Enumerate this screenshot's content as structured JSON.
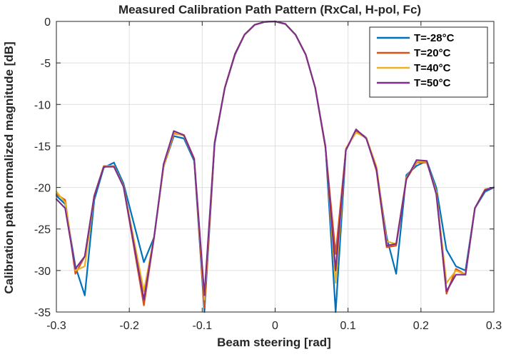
{
  "chart_data": {
    "type": "line",
    "title": "Measured Calibration Path Pattern (RxCal, H-pol, Fc)",
    "xlabel": "Beam steering [rad]",
    "ylabel": "Calibration path normalized magnitude [dB]",
    "xlim": [
      -0.3,
      0.3
    ],
    "ylim": [
      -35,
      0
    ],
    "xticks": [
      -0.3,
      -0.2,
      -0.1,
      0,
      0.1,
      0.2,
      0.3
    ],
    "xtick_labels": [
      "-0.3",
      "-0.2",
      "-0.1",
      "0",
      "0.1",
      "0.2",
      "0.3"
    ],
    "yticks": [
      -35,
      -30,
      -25,
      -20,
      -15,
      -10,
      -5,
      0
    ],
    "ytick_labels": [
      "-35",
      "-30",
      "-25",
      "-20",
      "-15",
      "-10",
      "-5",
      "0"
    ],
    "grid": true,
    "legend_position": "top-right",
    "series": [
      {
        "name": "T=-28°C",
        "color": "#0072BD",
        "points": [
          [
            -0.3,
            -21.0
          ],
          [
            -0.288,
            -22.0
          ],
          [
            -0.274,
            -29.5
          ],
          [
            -0.261,
            -33.0
          ],
          [
            -0.248,
            -21.5
          ],
          [
            -0.235,
            -17.6
          ],
          [
            -0.221,
            -17.0
          ],
          [
            -0.208,
            -19.5
          ],
          [
            -0.18,
            -29.0
          ],
          [
            -0.166,
            -26.0
          ],
          [
            -0.153,
            -17.5
          ],
          [
            -0.139,
            -13.8
          ],
          [
            -0.125,
            -14.1
          ],
          [
            -0.111,
            -16.8
          ],
          [
            -0.097,
            -35.0
          ],
          [
            -0.083,
            -14.8
          ],
          [
            -0.069,
            -8.0
          ],
          [
            -0.055,
            -4.0
          ],
          [
            -0.042,
            -1.6
          ],
          [
            -0.028,
            -0.4
          ],
          [
            -0.014,
            -0.05
          ],
          [
            0.0,
            0.0
          ],
          [
            0.014,
            -0.3
          ],
          [
            0.028,
            -1.6
          ],
          [
            0.042,
            -4.0
          ],
          [
            0.055,
            -8.0
          ],
          [
            0.069,
            -15.0
          ],
          [
            0.083,
            -35.0
          ],
          [
            0.097,
            -15.5
          ],
          [
            0.111,
            -13.1
          ],
          [
            0.125,
            -14.0
          ],
          [
            0.139,
            -17.8
          ],
          [
            0.153,
            -26.0
          ],
          [
            0.166,
            -30.4
          ],
          [
            0.18,
            -18.5
          ],
          [
            0.194,
            -17.4
          ],
          [
            0.208,
            -16.8
          ],
          [
            0.221,
            -20.0
          ],
          [
            0.235,
            -27.5
          ],
          [
            0.248,
            -29.5
          ],
          [
            0.261,
            -30.0
          ],
          [
            0.274,
            -22.5
          ],
          [
            0.288,
            -20.5
          ],
          [
            0.3,
            -20.0
          ]
        ]
      },
      {
        "name": "T=20°C",
        "color": "#D95319",
        "points": [
          [
            -0.3,
            -20.8
          ],
          [
            -0.288,
            -21.5
          ],
          [
            -0.274,
            -30.4
          ],
          [
            -0.261,
            -28.3
          ],
          [
            -0.248,
            -21.0
          ],
          [
            -0.235,
            -17.4
          ],
          [
            -0.221,
            -17.5
          ],
          [
            -0.208,
            -19.8
          ],
          [
            -0.18,
            -34.2
          ],
          [
            -0.166,
            -26.0
          ],
          [
            -0.153,
            -17.5
          ],
          [
            -0.139,
            -13.5
          ],
          [
            -0.125,
            -13.7
          ],
          [
            -0.111,
            -16.5
          ],
          [
            -0.097,
            -34.5
          ],
          [
            -0.083,
            -14.6
          ],
          [
            -0.069,
            -8.0
          ],
          [
            -0.055,
            -3.9
          ],
          [
            -0.042,
            -1.6
          ],
          [
            -0.028,
            -0.4
          ],
          [
            -0.014,
            -0.05
          ],
          [
            0.0,
            0.0
          ],
          [
            0.014,
            -0.3
          ],
          [
            0.028,
            -1.6
          ],
          [
            0.042,
            -4.0
          ],
          [
            0.055,
            -8.0
          ],
          [
            0.069,
            -15.2
          ],
          [
            0.083,
            -28.0
          ],
          [
            0.097,
            -15.5
          ],
          [
            0.111,
            -13.2
          ],
          [
            0.125,
            -14.0
          ],
          [
            0.139,
            -18.0
          ],
          [
            0.153,
            -27.2
          ],
          [
            0.166,
            -27.0
          ],
          [
            0.18,
            -19.0
          ],
          [
            0.194,
            -17.0
          ],
          [
            0.208,
            -17.0
          ],
          [
            0.221,
            -20.5
          ],
          [
            0.235,
            -32.8
          ],
          [
            0.248,
            -29.8
          ],
          [
            0.261,
            -30.5
          ],
          [
            0.274,
            -22.5
          ],
          [
            0.288,
            -20.2
          ],
          [
            0.3,
            -20.0
          ]
        ]
      },
      {
        "name": "T=40°C",
        "color": "#EDB120",
        "points": [
          [
            -0.3,
            -20.5
          ],
          [
            -0.288,
            -21.8
          ],
          [
            -0.274,
            -30.0
          ],
          [
            -0.261,
            -29.5
          ],
          [
            -0.248,
            -21.0
          ],
          [
            -0.235,
            -17.4
          ],
          [
            -0.221,
            -17.4
          ],
          [
            -0.208,
            -19.8
          ],
          [
            -0.18,
            -32.5
          ],
          [
            -0.166,
            -26.0
          ],
          [
            -0.153,
            -17.5
          ],
          [
            -0.139,
            -13.4
          ],
          [
            -0.125,
            -13.8
          ],
          [
            -0.111,
            -16.6
          ],
          [
            -0.097,
            -33.5
          ],
          [
            -0.083,
            -14.6
          ],
          [
            -0.069,
            -8.0
          ],
          [
            -0.055,
            -3.9
          ],
          [
            -0.042,
            -1.6
          ],
          [
            -0.028,
            -0.4
          ],
          [
            -0.014,
            -0.05
          ],
          [
            0.0,
            0.0
          ],
          [
            0.014,
            -0.3
          ],
          [
            0.028,
            -1.6
          ],
          [
            0.042,
            -4.0
          ],
          [
            0.055,
            -8.0
          ],
          [
            0.069,
            -15.0
          ],
          [
            0.083,
            -31.5
          ],
          [
            0.097,
            -15.3
          ],
          [
            0.111,
            -13.4
          ],
          [
            0.125,
            -14.0
          ],
          [
            0.139,
            -17.5
          ],
          [
            0.153,
            -26.5
          ],
          [
            0.166,
            -26.8
          ],
          [
            0.18,
            -18.8
          ],
          [
            0.194,
            -16.9
          ],
          [
            0.208,
            -16.9
          ],
          [
            0.221,
            -20.5
          ],
          [
            0.235,
            -31.5
          ],
          [
            0.248,
            -30.0
          ],
          [
            0.261,
            -30.5
          ],
          [
            0.274,
            -22.5
          ],
          [
            0.288,
            -20.2
          ],
          [
            0.3,
            -20.0
          ]
        ]
      },
      {
        "name": "T=50°C",
        "color": "#7E2F8E",
        "points": [
          [
            -0.3,
            -21.4
          ],
          [
            -0.288,
            -22.5
          ],
          [
            -0.274,
            -29.8
          ],
          [
            -0.261,
            -28.3
          ],
          [
            -0.248,
            -21.0
          ],
          [
            -0.235,
            -17.5
          ],
          [
            -0.221,
            -17.5
          ],
          [
            -0.208,
            -19.9
          ],
          [
            -0.18,
            -33.5
          ],
          [
            -0.166,
            -26.0
          ],
          [
            -0.153,
            -17.2
          ],
          [
            -0.139,
            -13.2
          ],
          [
            -0.125,
            -13.7
          ],
          [
            -0.111,
            -16.6
          ],
          [
            -0.097,
            -33.0
          ],
          [
            -0.083,
            -14.6
          ],
          [
            -0.069,
            -8.0
          ],
          [
            -0.055,
            -3.9
          ],
          [
            -0.042,
            -1.6
          ],
          [
            -0.028,
            -0.4
          ],
          [
            -0.014,
            -0.05
          ],
          [
            0.0,
            0.0
          ],
          [
            0.014,
            -0.3
          ],
          [
            0.028,
            -1.6
          ],
          [
            0.042,
            -4.0
          ],
          [
            0.055,
            -8.0
          ],
          [
            0.069,
            -15.1
          ],
          [
            0.083,
            -30.0
          ],
          [
            0.097,
            -15.5
          ],
          [
            0.111,
            -13.0
          ],
          [
            0.125,
            -14.1
          ],
          [
            0.139,
            -17.8
          ],
          [
            0.153,
            -27.0
          ],
          [
            0.166,
            -26.8
          ],
          [
            0.18,
            -19.0
          ],
          [
            0.194,
            -16.7
          ],
          [
            0.208,
            -16.8
          ],
          [
            0.221,
            -20.8
          ],
          [
            0.235,
            -32.5
          ],
          [
            0.248,
            -30.5
          ],
          [
            0.261,
            -30.5
          ],
          [
            0.274,
            -22.5
          ],
          [
            0.288,
            -20.3
          ],
          [
            0.3,
            -20.0
          ]
        ]
      }
    ]
  }
}
